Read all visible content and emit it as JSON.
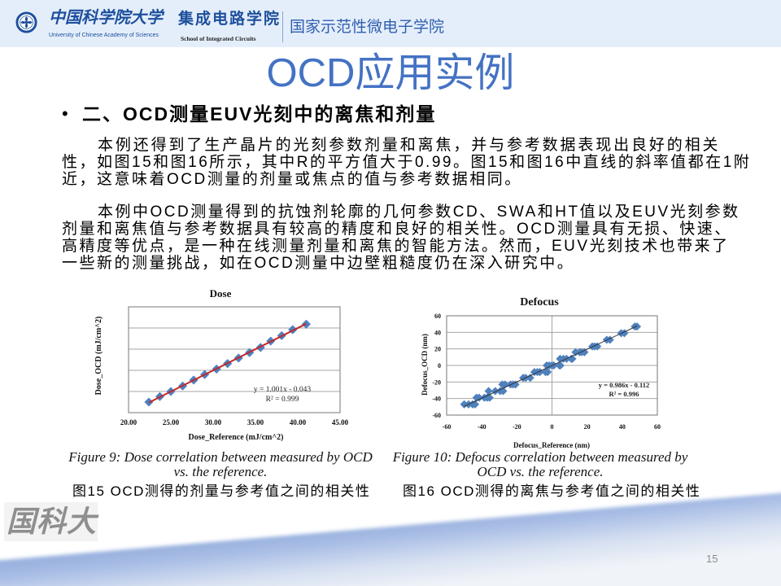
{
  "header": {
    "university_name_cn": "中国科学院大学",
    "university_name_en": "University of Chinese Academy of Sciences",
    "school_name_cn": "集成电路学院",
    "school_name_en": "School of Integrated Circuits",
    "program_name": "国家示范性微电子学院"
  },
  "slide": {
    "title": "OCD应用实例",
    "bullet_symbol": "•",
    "bullet_heading": "二、OCD测量EUV光刻中的离焦和剂量",
    "paragraphs": [
      {
        "lines": [
          "本例还得到了生产晶片的光刻参数剂量和离焦，并与参考数据表现出良好的相关",
          "性，如图15和图16所示，其中R的平方值大于0.99。图15和图16中直线的斜率值都在1附",
          "近，这意味着OCD测量的剂量或焦点的值与参考数据相同。"
        ]
      },
      {
        "lines": [
          "本例中OCD测量得到的抗蚀剂轮廓的几何参数CD、SWA和HT值以及EUV光刻参数",
          "剂量和离焦值与参考数据具有较高的精度和良好的相关性。OCD测量具有无损、快速、",
          "高精度等优点，是一种在线测量剂量和离焦的智能方法。然而，EUV光刻技术也带来了",
          "一些新的测量挑战，如在OCD测量中边壁粗糙度仍在深入研究中。"
        ]
      }
    ],
    "figures": [
      {
        "caption_en_lines": [
          "Figure 9: Dose correlation between measured by OCD",
          "vs. the reference."
        ],
        "caption_cn": "图15 OCD测得的剂量与参考值之间的相关性"
      },
      {
        "caption_en_lines": [
          "Figure 10: Defocus correlation between measured by",
          "OCD vs. the reference."
        ],
        "caption_cn": "图16 OCD测得的离焦与参考值之间的相关性"
      }
    ],
    "watermark": "国科大",
    "page_number": "15"
  },
  "colors": {
    "header_band": "#e4eefb",
    "title": "#4472c4",
    "brand_blue": "#1d4f9c",
    "program_blue": "#2f5fae",
    "swoosh_blue": "#9fb5df",
    "page_number": "#8c8c8c"
  },
  "chart_data": [
    {
      "type": "scatter",
      "title": "Dose",
      "xlabel": "Dose_Reference (mJ/cm^2)",
      "ylabel": "Dose_OCD (mJ/cm^2)",
      "xlim": [
        20,
        45
      ],
      "ylim": [
        20,
        45
      ],
      "x_ticks": [
        20,
        25,
        30,
        35,
        40,
        45
      ],
      "x_tick_labels": [
        "20.00",
        "25.00",
        "30.00",
        "35.00",
        "40.00",
        "45.00"
      ],
      "y_ticks": [],
      "y_tick_labels": [],
      "x_gridlines": [],
      "y_gridlines": [
        25,
        30,
        35,
        40
      ],
      "grid": true,
      "legend": "none",
      "marker_color": "#4f81bd",
      "points": [
        [
          22.4,
          22.5
        ],
        [
          23.7,
          23.8
        ],
        [
          25.0,
          25.0
        ],
        [
          26.4,
          26.3
        ],
        [
          27.7,
          27.7
        ],
        [
          29.0,
          29.0
        ],
        [
          30.4,
          30.3
        ],
        [
          31.7,
          31.6
        ],
        [
          33.0,
          32.9
        ],
        [
          34.3,
          34.2
        ],
        [
          35.6,
          35.4
        ],
        [
          36.8,
          36.9
        ],
        [
          38.1,
          38.2
        ],
        [
          39.4,
          39.6
        ],
        [
          41.0,
          40.9
        ]
      ],
      "trendline": {
        "slope": 1.001,
        "intercept": -0.043,
        "x_range": [
          22.4,
          41.0
        ],
        "color": "#c0282d",
        "width": 2
      },
      "equation": "y = 1.001x - 0.043",
      "r_squared": "R² = 0.999"
    },
    {
      "type": "scatter",
      "title": "Defocus",
      "xlabel": "Defocus_Reference (nm)",
      "ylabel": "Defocus_OCD (nm)",
      "xlim": [
        -60,
        60
      ],
      "ylim": [
        -60,
        60
      ],
      "x_ticks": [
        -60,
        -40,
        -20,
        0,
        20,
        40,
        60
      ],
      "x_tick_labels": [
        "-60",
        "-40",
        "-20",
        "0",
        "20",
        "40",
        "60"
      ],
      "y_ticks": [
        -60,
        -40,
        -20,
        0,
        20,
        40,
        60
      ],
      "y_tick_labels": [
        "-60",
        "-40",
        "-20",
        "0",
        "20",
        "40",
        "60"
      ],
      "x_gridlines": [
        0
      ],
      "y_gridlines": [
        -40,
        -20,
        0,
        20,
        40
      ],
      "grid": true,
      "legend": "none",
      "marker_color": "#4f81bd",
      "points": [
        [
          -50.0,
          -47
        ],
        [
          -47.5,
          -47
        ],
        [
          -45.2,
          -47
        ],
        [
          -43.8,
          -47
        ],
        [
          -43.0,
          -39
        ],
        [
          -41.5,
          -39
        ],
        [
          -38.5,
          -39
        ],
        [
          -36.9,
          -39
        ],
        [
          -35.5,
          -39
        ],
        [
          -36.1,
          -31
        ],
        [
          -32.3,
          -31
        ],
        [
          -29.5,
          -31
        ],
        [
          -27.8,
          -31
        ],
        [
          -28.3,
          -23
        ],
        [
          -26.8,
          -23
        ],
        [
          -23.6,
          -23
        ],
        [
          -22.2,
          -23
        ],
        [
          -20.8,
          -23
        ],
        [
          -16.4,
          -15
        ],
        [
          -15.0,
          -15
        ],
        [
          -12.4,
          -15
        ],
        [
          -10.0,
          -8
        ],
        [
          -8.3,
          -8
        ],
        [
          -6.9,
          -8
        ],
        [
          -3.7,
          -8
        ],
        [
          -2.5,
          -8
        ],
        [
          -3.0,
          0
        ],
        [
          -1.5,
          0
        ],
        [
          0.0,
          0
        ],
        [
          1.0,
          0
        ],
        [
          4.2,
          0
        ],
        [
          4.8,
          0
        ],
        [
          4.6,
          8
        ],
        [
          6.5,
          8
        ],
        [
          8.3,
          8
        ],
        [
          11.0,
          8
        ],
        [
          11.6,
          8
        ],
        [
          13.4,
          16
        ],
        [
          15.7,
          16
        ],
        [
          17.0,
          16
        ],
        [
          18.5,
          16
        ],
        [
          23.0,
          23
        ],
        [
          24.3,
          23
        ],
        [
          25.8,
          23
        ],
        [
          31.2,
          31
        ],
        [
          33.0,
          31
        ],
        [
          39.4,
          39
        ],
        [
          41.2,
          39
        ],
        [
          47.2,
          47
        ],
        [
          48.4,
          47
        ]
      ],
      "trendline": {
        "slope": 0.986,
        "intercept": -0.112,
        "x_range": [
          -50,
          48.5
        ],
        "color": "#333333",
        "width": 1
      },
      "equation": "y = 0.986x - 0.112",
      "r_squared": "R² = 0.996"
    }
  ]
}
